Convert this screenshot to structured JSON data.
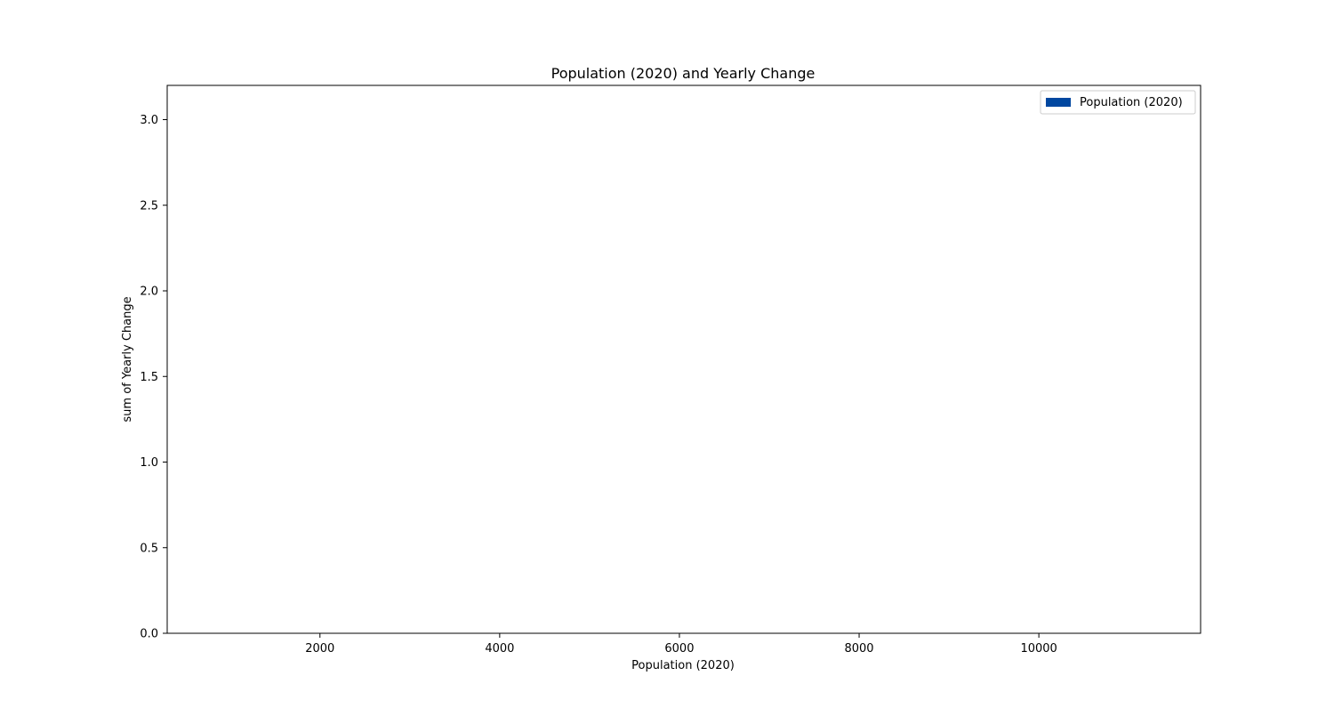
{
  "chart_data": {
    "type": "bar",
    "title": "Population (2020) and Yearly Change",
    "xlabel": "Population (2020)",
    "ylabel": "sum of Yearly Change",
    "xlim": [
      300,
      11800
    ],
    "ylim": [
      0,
      3.2
    ],
    "x_ticks": [
      2000,
      4000,
      6000,
      8000,
      10000
    ],
    "y_ticks": [
      0.0,
      0.5,
      1.0,
      1.5,
      2.0,
      2.5,
      3.0
    ],
    "x_tick_labels": [
      "2000",
      "4000",
      "6000",
      "8000",
      "10000"
    ],
    "y_tick_labels": [
      "0.0",
      "0.5",
      "1.0",
      "1.5",
      "2.0",
      "2.5",
      "3.0"
    ],
    "series": [
      {
        "name": "Population (2020)",
        "color": "#0047a0",
        "x": [],
        "values": []
      }
    ],
    "legend": {
      "position": "top-right"
    },
    "grid": false
  }
}
